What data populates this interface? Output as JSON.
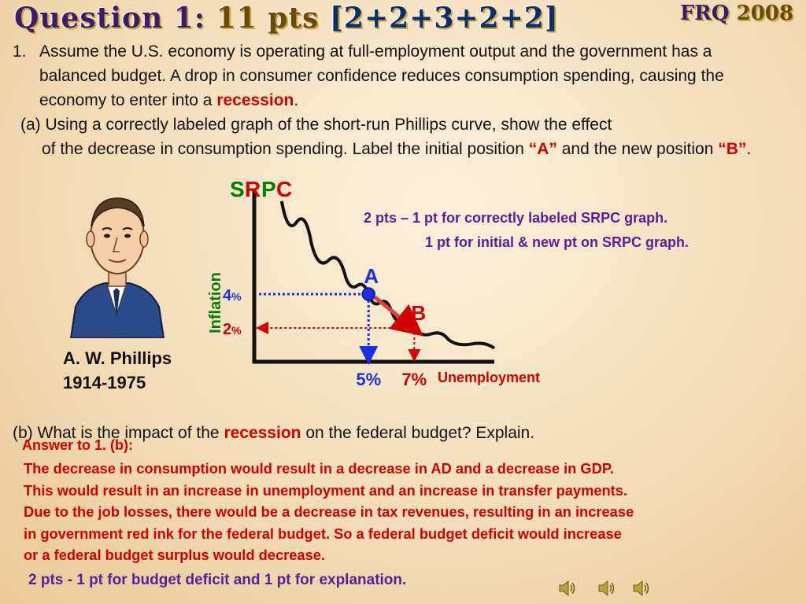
{
  "header": {
    "title_q": "Question 1:",
    "title_pts": "11 pts",
    "title_nums": "[2+2+3+2+2]",
    "frq": "FRQ",
    "year": "2008"
  },
  "question": {
    "number": "1.",
    "intro_before": "Assume the  U.S. economy is  operating at  full-employment  output  and  the government has a balanced budget.   A drop in consumer confidence reduces consumption spending, causing the economy to enter into a ",
    "intro_highlight": "recession",
    "intro_after": ".",
    "part_a_line1": "(a) Using a correctly labeled graph of the short-run Phillips curve, show the effect",
    "part_a_cont_before": "of the decrease in consumption spending. Label the initial position ",
    "part_a_A": "“A”",
    "part_a_mid": "  and the new position ",
    "part_a_B": "“B”",
    "part_a_end": ".",
    "part_b_before": "(b) What is the impact of the ",
    "part_b_highlight": "recession",
    "part_b_after": " on the federal budget? Explain."
  },
  "portrait": {
    "caption_name": "A. W. Phillips",
    "caption_years": "1914-1975"
  },
  "chart_data": {
    "type": "line",
    "title": "SRPC",
    "title_letters": [
      "S",
      "R",
      "P",
      "C"
    ],
    "ylabel": "Inflation",
    "xlabel": "Unemployment",
    "series": [
      {
        "name": "SRPC",
        "x": [
          1.2,
          2.5,
          4,
          5,
          6,
          7,
          8.5,
          10.5
        ],
        "y": [
          9.5,
          7,
          5,
          4,
          3,
          2,
          1.3,
          0.8
        ]
      }
    ],
    "points": [
      {
        "label": "A",
        "x": 5,
        "y": 4,
        "color": "#1a2fe0"
      },
      {
        "label": "B",
        "x": 7,
        "y": 2,
        "color": "#d40000"
      }
    ],
    "x_ticks": [
      {
        "value": 5,
        "label": "5%"
      },
      {
        "value": 7,
        "label": "7%"
      }
    ],
    "y_ticks": [
      {
        "value": 4,
        "label": "4",
        "unit": "%"
      },
      {
        "value": 2,
        "label": "2",
        "unit": "%"
      }
    ],
    "xlim": [
      0,
      10.5
    ],
    "ylim": [
      0,
      10
    ],
    "grid": false,
    "colors": {
      "curve": "#111111",
      "A": "#1a2fe0",
      "B": "#d40000",
      "shift": "#e04040",
      "title_green": "#008000",
      "title_red": "#d40000",
      "label_green": "#0a7a0a",
      "label_red": "#d40000",
      "x5": "#1a2fe0",
      "x7": "#d40000"
    }
  },
  "scoring": {
    "part_a_line1": "2 pts – 1 pt for correctly labeled SRPC graph.",
    "part_a_line2": "1 pt for initial & new pt on SRPC graph.",
    "part_b": "2 pts - 1 pt for budget deficit and 1 pt for explanation."
  },
  "answer": {
    "heading": "Answer to 1. (b):",
    "lines": [
      "The  decrease  in  consumption  would result in a decrease in AD and a decrease  in GDP.",
      "This would result in  an  increase in unemployment and an increase in transfer payments.",
      "Due to the job losses, there would be a decrease in tax revenues, resulting in an increase",
      "in government red ink for the federal budget.   So a  federal budget deficit would increase",
      "or a federal budget surplus would decrease."
    ]
  },
  "icons": [
    "speaker-icon",
    "speaker-icon",
    "speaker-icon"
  ]
}
